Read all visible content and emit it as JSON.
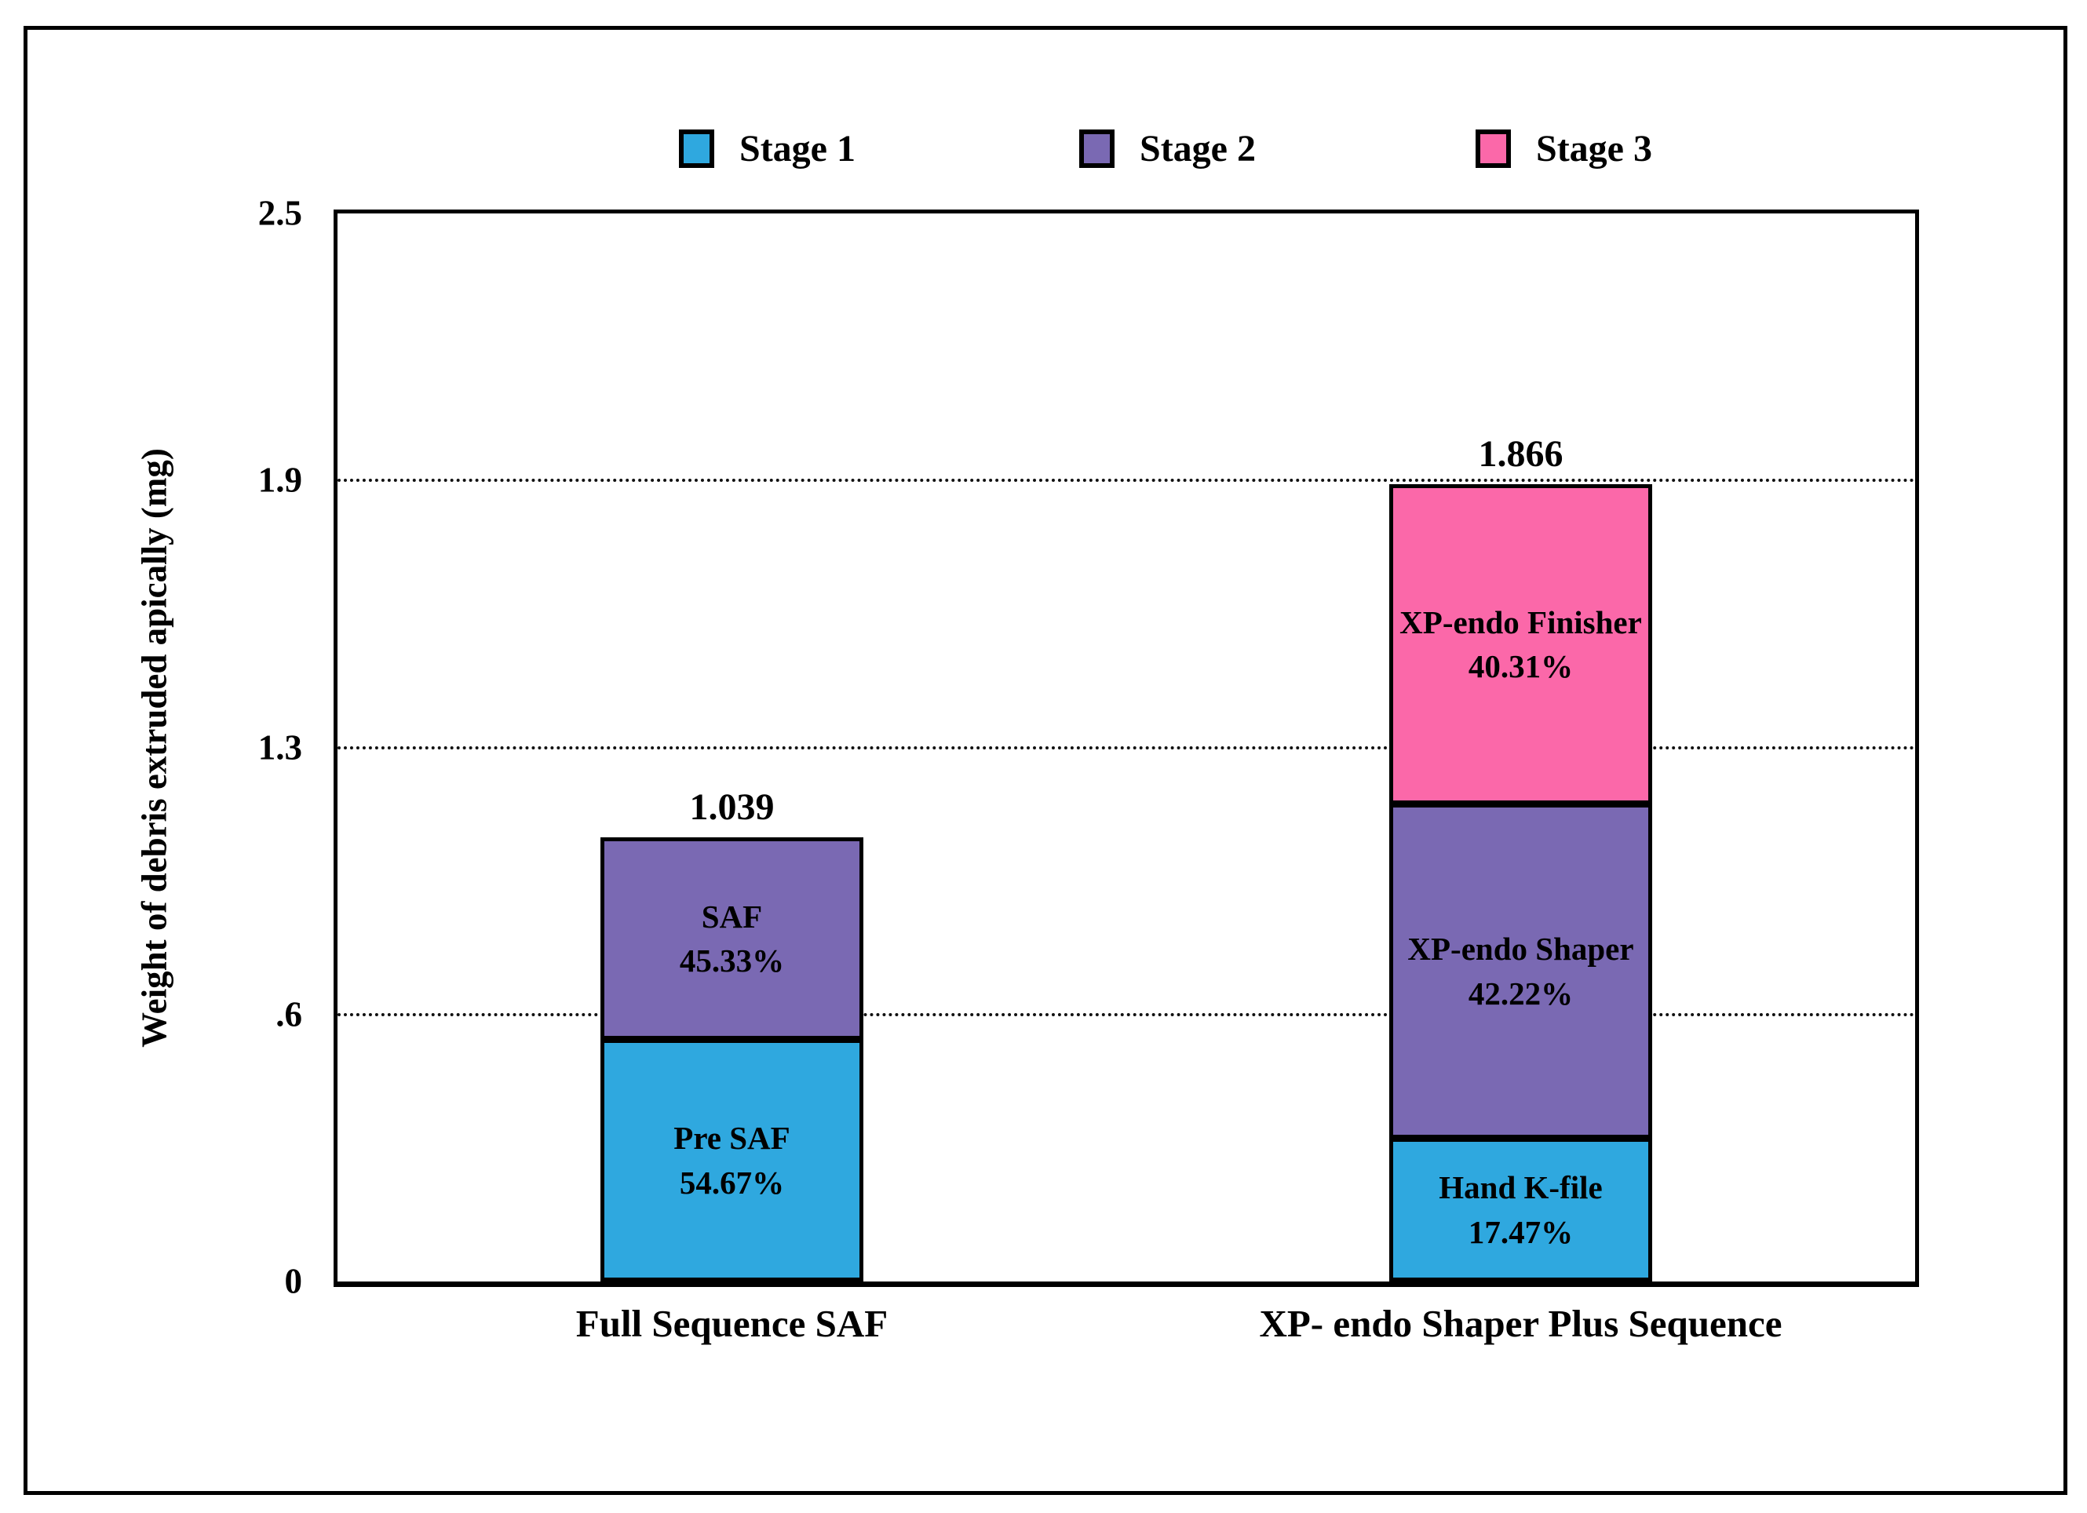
{
  "page": {
    "background": "#ffffff",
    "frame_color": "#000000",
    "text_color": "#000000"
  },
  "legend": {
    "position": "top",
    "items": [
      {
        "label": "Stage 1",
        "color": "#2FA8DF"
      },
      {
        "label": "Stage 2",
        "color": "#7A69B3"
      },
      {
        "label": "Stage 3",
        "color": "#FB68A9"
      }
    ]
  },
  "chart_data": {
    "type": "bar",
    "stacked": true,
    "title": "",
    "xlabel": "",
    "ylabel": "Weight of debris extruded apically (mg)",
    "ylim": [
      0,
      2.5
    ],
    "yticks": [
      {
        "label": "0",
        "value": 0
      },
      {
        "label": ".6",
        "value": 0.625
      },
      {
        "label": "1.3",
        "value": 1.25
      },
      {
        "label": "1.9",
        "value": 1.875
      },
      {
        "label": "2.5",
        "value": 2.5
      }
    ],
    "gridlines": {
      "style": "dotted",
      "values": [
        0.625,
        1.25,
        1.875
      ]
    },
    "legend_position": "top",
    "categories": [
      "Full Sequence SAF",
      "XP- endo Shaper Plus Sequence"
    ],
    "bars": [
      {
        "category": "Full Sequence SAF",
        "total": 1.039,
        "total_label": "1.039",
        "segments": [
          {
            "stage": "Stage 1",
            "name": "Pre SAF",
            "pct": 54.67,
            "percent_label": "54.67%",
            "color": "#2FA8DF"
          },
          {
            "stage": "Stage 2",
            "name": "SAF",
            "pct": 45.33,
            "percent_label": "45.33%",
            "color": "#7A69B3"
          }
        ]
      },
      {
        "category": "XP- endo Shaper Plus Sequence",
        "total": 1.866,
        "total_label": "1.866",
        "segments": [
          {
            "stage": "Stage 1",
            "name": "Hand K-file",
            "pct": 17.47,
            "percent_label": "17.47%",
            "color": "#2FA8DF"
          },
          {
            "stage": "Stage 2",
            "name": "XP-endo Shaper",
            "pct": 42.22,
            "percent_label": "42.22%",
            "color": "#7A69B3"
          },
          {
            "stage": "Stage 3",
            "name": "XP-endo Finisher",
            "pct": 40.31,
            "percent_label": "40.31%",
            "color": "#FB68A9"
          }
        ]
      }
    ]
  }
}
